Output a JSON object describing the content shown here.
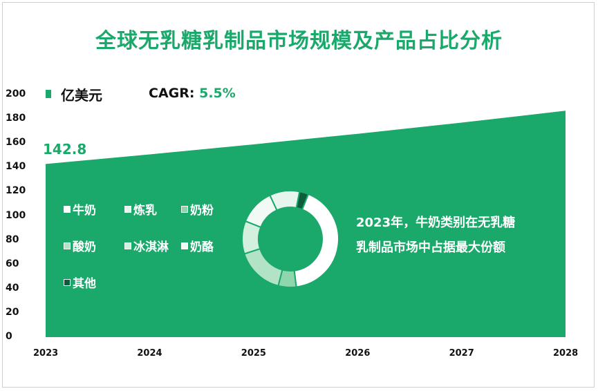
{
  "title": "全球无乳糖乳制品市场规模及产品占比分析",
  "unit": "亿美元",
  "cagr_label": "CAGR:",
  "cagr_value": "5.5%",
  "first_value_label": "142.8",
  "note_line1": "2023年，牛奶类别在无乳糖",
  "note_line2": "乳制品市场中占据最大份额",
  "colors": {
    "accent": "#1aa96b",
    "area": "#1aa96b",
    "text": "#111111"
  },
  "legend": [
    {
      "label": "牛奶",
      "color": "#ffffff"
    },
    {
      "label": "炼乳",
      "color": "#e6f6ee"
    },
    {
      "label": "奶粉",
      "color": "#8fd6ad"
    },
    {
      "label": "酸奶",
      "color": "#b2e3c6"
    },
    {
      "label": "冰淇淋",
      "color": "#d3efde"
    },
    {
      "label": "奶酪",
      "color": "#f1faf5"
    },
    {
      "label": "其他",
      "color": "#0d5c3b"
    }
  ],
  "chart_data": [
    {
      "type": "area",
      "title": "全球无乳糖乳制品市场规模及产品占比分析",
      "ylabel": "亿美元",
      "x": [
        "2023",
        "2024",
        "2025",
        "2026",
        "2027",
        "2028"
      ],
      "series": [
        {
          "values": [
            142.8,
            150.7,
            159.0,
            167.7,
            176.9,
            186.7
          ]
        }
      ],
      "ylim": [
        0,
        200
      ],
      "yticks": [
        0,
        20,
        40,
        60,
        80,
        100,
        120,
        140,
        160,
        180,
        200
      ],
      "grid": false
    },
    {
      "type": "pie",
      "categories": [
        "牛奶",
        "奶粉",
        "酸奶",
        "冰淇淋",
        "奶酪",
        "炼乳",
        "其他"
      ],
      "values": [
        42,
        6,
        16,
        11,
        12,
        10,
        3
      ]
    }
  ]
}
